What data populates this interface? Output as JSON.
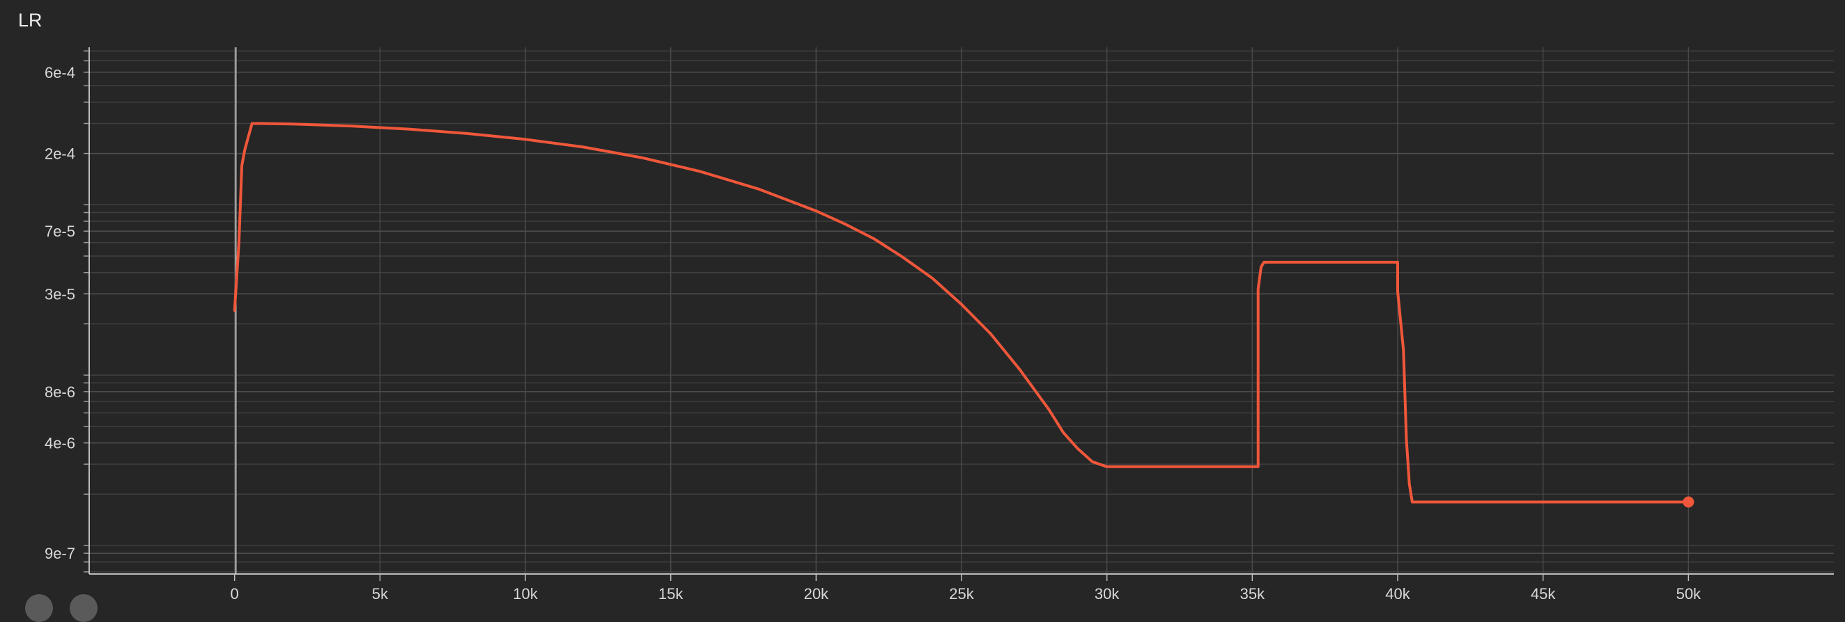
{
  "chart_data": {
    "type": "line",
    "title": "LR",
    "xlabel": "",
    "ylabel": "",
    "x_scale": "linear",
    "y_scale": "log",
    "xlim": [
      -5000,
      55000
    ],
    "ylim": [
      6.8e-07,
      0.00084
    ],
    "grid": true,
    "x_ticks": [
      {
        "value": 0,
        "label": "0"
      },
      {
        "value": 5000,
        "label": "5k"
      },
      {
        "value": 10000,
        "label": "10k"
      },
      {
        "value": 15000,
        "label": "15k"
      },
      {
        "value": 20000,
        "label": "20k"
      },
      {
        "value": 25000,
        "label": "25k"
      },
      {
        "value": 30000,
        "label": "30k"
      },
      {
        "value": 35000,
        "label": "35k"
      },
      {
        "value": 40000,
        "label": "40k"
      },
      {
        "value": 45000,
        "label": "45k"
      },
      {
        "value": 50000,
        "label": "50k"
      }
    ],
    "y_ticks": [
      {
        "value": 0.0006,
        "label": "6e-4"
      },
      {
        "value": 0.0002,
        "label": "2e-4"
      },
      {
        "value": 7e-05,
        "label": "7e-5"
      },
      {
        "value": 3e-05,
        "label": "3e-5"
      },
      {
        "value": 8e-06,
        "label": "8e-6"
      },
      {
        "value": 4e-06,
        "label": "4e-6"
      },
      {
        "value": 9e-07,
        "label": "9e-7"
      }
    ],
    "line_color": "#f0573a",
    "series": [
      {
        "x": [
          0,
          150,
          250,
          350,
          500,
          600,
          900,
          2000,
          4000,
          6000,
          8000,
          10000,
          12000,
          14000,
          16000,
          18000,
          20000,
          21000,
          22000,
          23000,
          24000,
          25000,
          26000,
          27000,
          28000,
          28500,
          29000,
          29500,
          30000,
          31000,
          33000,
          35000,
          35200,
          35200,
          35300,
          35400,
          36000,
          38000,
          40000,
          40000,
          40200,
          40300,
          40400,
          40500,
          41000,
          45000,
          50000
        ],
        "y": [
          2.4e-05,
          6e-05,
          0.00017,
          0.00021,
          0.00026,
          0.0003,
          0.0003,
          0.000298,
          0.00029,
          0.000278,
          0.000262,
          0.000242,
          0.000218,
          0.000189,
          0.000157,
          0.000124,
          9.2e-05,
          7.7e-05,
          6.3e-05,
          4.9e-05,
          3.7e-05,
          2.6e-05,
          1.75e-05,
          1.08e-05,
          6.3e-06,
          4.6e-06,
          3.7e-06,
          3.1e-06,
          2.9e-06,
          2.9e-06,
          2.9e-06,
          2.9e-06,
          2.9e-06,
          3.2e-05,
          4.3e-05,
          4.6e-05,
          4.6e-05,
          4.6e-05,
          4.6e-05,
          3.1e-05,
          1.4e-05,
          4.2e-06,
          2.3e-06,
          1.8e-06,
          1.8e-06,
          1.8e-06,
          1.8e-06
        ]
      }
    ]
  }
}
